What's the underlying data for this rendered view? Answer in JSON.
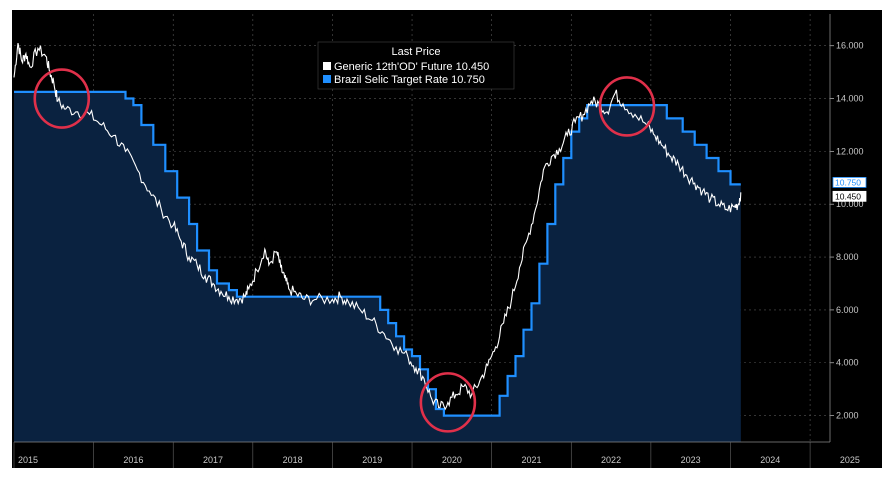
{
  "chart_data": {
    "type": "line",
    "legend": {
      "title": "Last Price",
      "placement": "top-center",
      "entries": [
        {
          "label": "Generic 12th'OD' Future 10.450",
          "color": "#ffffff"
        },
        {
          "label": "Brazil Selic Target Rate 10.750",
          "color": "#1f8fff"
        }
      ]
    },
    "x_ticks": [
      "2015",
      "2016",
      "2017",
      "2018",
      "2019",
      "2020",
      "2021",
      "2022",
      "2023",
      "2024",
      "2025"
    ],
    "y_ticks": [
      "2.000",
      "4.000",
      "6.000",
      "8.000",
      "10.000",
      "12.000",
      "14.000",
      "16.000"
    ],
    "xlim": [
      2015.0,
      2025.25
    ],
    "ylim": [
      1.0,
      17.2
    ],
    "grid": true,
    "badges": [
      {
        "text": "10.750",
        "value": 10.75,
        "color": "#1f8fff",
        "text_color": "#1f8fff"
      },
      {
        "text": "10.450",
        "value": 10.45,
        "color": "#ffffff",
        "text_color": "#000000"
      }
    ],
    "series": [
      {
        "name": "Brazil Selic Target Rate",
        "color": "#1f8fff",
        "fill": "#0a2240",
        "step": true,
        "x": [
          2015.0,
          2015.5,
          2016.3,
          2016.4,
          2016.5,
          2016.6,
          2016.75,
          2016.9,
          2017.05,
          2017.2,
          2017.3,
          2017.45,
          2017.55,
          2017.7,
          2017.8,
          2017.95,
          2018.05,
          2018.2,
          2019.05,
          2019.6,
          2019.7,
          2019.8,
          2019.9,
          2020.0,
          2020.1,
          2020.2,
          2020.3,
          2020.4,
          2020.5,
          2021.1,
          2021.2,
          2021.3,
          2021.4,
          2021.5,
          2021.6,
          2021.7,
          2021.8,
          2021.9,
          2022.0,
          2022.1,
          2022.2,
          2022.3,
          2022.45,
          2022.55,
          2023.05,
          2023.2,
          2023.4,
          2023.55,
          2023.7,
          2023.85,
          2024.0,
          2024.13
        ],
        "values": [
          14.25,
          14.25,
          14.25,
          14.0,
          13.75,
          13.0,
          12.25,
          11.25,
          10.25,
          9.25,
          8.25,
          7.5,
          7.0,
          6.75,
          6.5,
          6.5,
          6.5,
          6.5,
          6.5,
          6.0,
          5.5,
          5.0,
          4.5,
          4.25,
          3.75,
          3.0,
          2.25,
          2.0,
          2.0,
          2.75,
          3.5,
          4.25,
          5.25,
          6.25,
          7.75,
          9.25,
          10.75,
          11.75,
          12.75,
          13.25,
          13.75,
          13.75,
          13.75,
          13.75,
          13.75,
          13.25,
          12.75,
          12.25,
          11.75,
          11.25,
          10.75,
          10.75
        ]
      },
      {
        "name": "Generic 12th'OD' Future",
        "color": "#ffffff",
        "step": false,
        "x": [
          2015.0,
          2015.05,
          2015.1,
          2015.15,
          2015.2,
          2015.3,
          2015.4,
          2015.45,
          2015.5,
          2015.55,
          2015.65,
          2015.8,
          2015.95,
          2016.1,
          2016.25,
          2016.4,
          2016.55,
          2016.7,
          2016.85,
          2017.0,
          2017.1,
          2017.2,
          2017.3,
          2017.4,
          2017.5,
          2017.6,
          2017.7,
          2017.8,
          2017.9,
          2017.95,
          2018.05,
          2018.15,
          2018.2,
          2018.3,
          2018.35,
          2018.4,
          2018.45,
          2018.55,
          2018.65,
          2018.8,
          2019.0,
          2019.1,
          2019.2,
          2019.35,
          2019.5,
          2019.65,
          2019.8,
          2019.95,
          2020.05,
          2020.15,
          2020.25,
          2020.35,
          2020.45,
          2020.55,
          2020.65,
          2020.75,
          2020.85,
          2020.95,
          2021.05,
          2021.15,
          2021.25,
          2021.35,
          2021.45,
          2021.55,
          2021.65,
          2021.75,
          2021.85,
          2021.95,
          2022.05,
          2022.15,
          2022.25,
          2022.35,
          2022.45,
          2022.55,
          2022.65,
          2022.8,
          2022.95,
          2023.05,
          2023.15,
          2023.25,
          2023.35,
          2023.45,
          2023.55,
          2023.65,
          2023.75,
          2023.85,
          2023.95,
          2024.05,
          2024.1,
          2024.13
        ],
        "values": [
          14.8,
          16.1,
          15.4,
          15.7,
          15.2,
          15.9,
          15.6,
          15.0,
          14.6,
          13.9,
          13.6,
          13.5,
          13.4,
          13.0,
          12.6,
          12.0,
          11.3,
          10.5,
          9.8,
          9.2,
          8.6,
          8.0,
          7.7,
          7.3,
          7.0,
          6.7,
          6.5,
          6.4,
          6.5,
          6.8,
          7.5,
          8.3,
          7.7,
          8.2,
          7.6,
          7.2,
          6.8,
          6.6,
          6.4,
          6.4,
          6.4,
          6.5,
          6.3,
          6.0,
          5.6,
          5.1,
          4.6,
          4.2,
          3.8,
          3.4,
          2.6,
          2.3,
          2.5,
          2.8,
          3.1,
          2.8,
          3.3,
          3.9,
          4.6,
          5.5,
          6.4,
          7.6,
          8.7,
          9.8,
          11.3,
          11.8,
          12.1,
          12.6,
          13.1,
          13.4,
          13.9,
          13.8,
          13.5,
          14.2,
          13.8,
          13.4,
          13.0,
          12.6,
          12.2,
          11.8,
          11.5,
          11.1,
          10.8,
          10.5,
          10.2,
          10.0,
          9.8,
          9.9,
          10.0,
          10.45
        ]
      }
    ],
    "annotations": [
      {
        "shape": "circle",
        "x": 2015.6,
        "y": 14.0,
        "color": "#e0304a"
      },
      {
        "shape": "circle",
        "x": 2020.45,
        "y": 2.5,
        "color": "#e0304a"
      },
      {
        "shape": "circle",
        "x": 2022.7,
        "y": 13.7,
        "color": "#e0304a"
      }
    ]
  }
}
